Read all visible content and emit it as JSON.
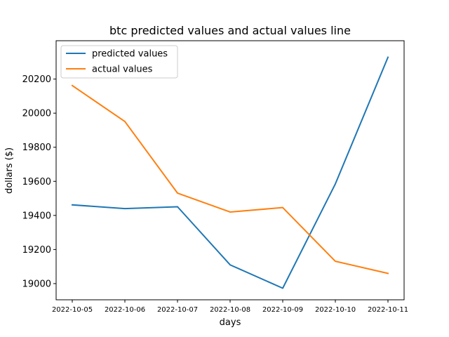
{
  "chart_data": {
    "type": "line",
    "title": "btc predicted values and actual values line",
    "xlabel": "days",
    "ylabel": "dollars ($)",
    "categories": [
      "2022-10-05",
      "2022-10-06",
      "2022-10-07",
      "2022-10-08",
      "2022-10-09",
      "2022-10-10",
      "2022-10-11"
    ],
    "ylim": [
      18905,
      20425
    ],
    "yticks": [
      19000,
      19200,
      19400,
      19600,
      19800,
      20000,
      20200
    ],
    "grid": false,
    "legend_position": "top-left",
    "series": [
      {
        "name": "predicted values",
        "color": "#1f77b4",
        "values": [
          19462,
          19440,
          19451,
          19110,
          18973,
          19585,
          20328
        ]
      },
      {
        "name": "actual values",
        "color": "#ff7f0e",
        "values": [
          20162,
          19951,
          19531,
          19420,
          19446,
          19131,
          19060
        ]
      }
    ]
  }
}
